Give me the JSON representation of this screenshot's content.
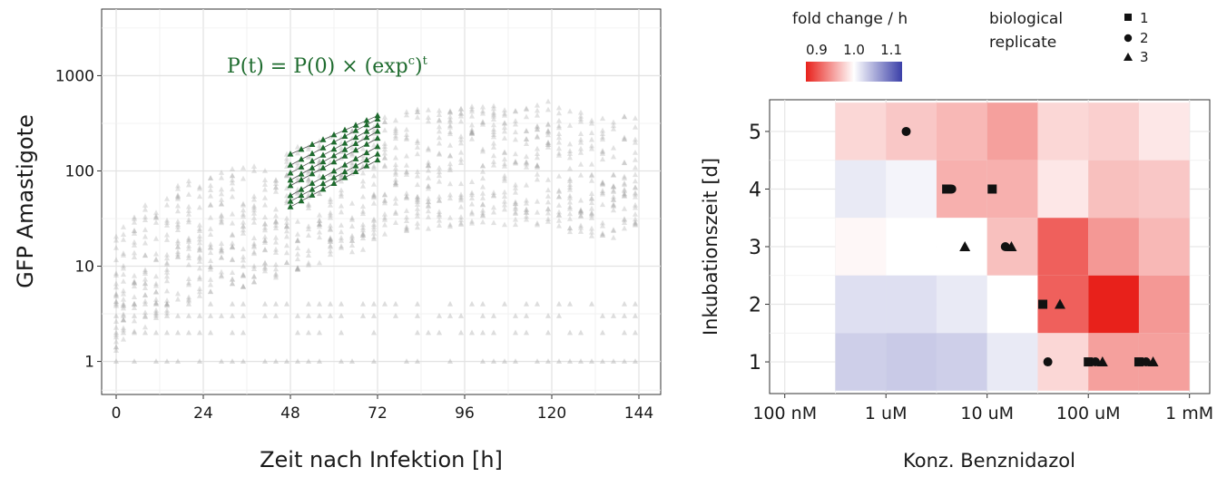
{
  "chart_data": [
    {
      "type": "scatter",
      "xlabel": "Zeit nach Infektion [h]",
      "ylabel": "GFP Amastigote",
      "annotation": "P(t) = P(0) × (exp",
      "annotation_sup": "c",
      "annotation_tail": ")",
      "annotation_sup2": "t",
      "x_ticks": [
        "0",
        "24",
        "48",
        "72",
        "96",
        "120",
        "144"
      ],
      "x_tick_values": [
        0,
        24,
        48,
        72,
        96,
        120,
        144
      ],
      "y_ticks": [
        "1",
        "10",
        "100",
        "1000"
      ],
      "y_tick_values": [
        1,
        10,
        100,
        1000
      ],
      "xlim": [
        -4,
        150
      ],
      "ylim": [
        0.45,
        5000
      ],
      "y_scale": "log",
      "grid": true,
      "point_color": "#9e9e9e",
      "highlight_color": "#1e6b2e",
      "background_timepoints_h": [
        0,
        2,
        5,
        8,
        11,
        14,
        17,
        20,
        23,
        26,
        29,
        32,
        35,
        38,
        41,
        44,
        47,
        50,
        53,
        56,
        59,
        62,
        65,
        68,
        71,
        74,
        77,
        80,
        83,
        86,
        89,
        92,
        95,
        98,
        101,
        104,
        107,
        110,
        113,
        116,
        119,
        122,
        125,
        128,
        131,
        134,
        137,
        140,
        143
      ],
      "background_median": [
        5,
        6,
        8,
        10,
        12,
        14,
        16,
        18,
        20,
        22,
        24,
        25,
        27,
        29,
        31,
        34,
        37,
        40,
        44,
        48,
        52,
        57,
        62,
        66,
        70,
        90,
        95,
        100,
        105,
        108,
        110,
        115,
        118,
        120,
        125,
        120,
        118,
        115,
        118,
        120,
        125,
        110,
        100,
        95,
        92,
        90,
        88,
        86,
        85
      ],
      "background_max": [
        25,
        30,
        40,
        55,
        70,
        90,
        120,
        150,
        180,
        190,
        200,
        210,
        220,
        230,
        240,
        260,
        280,
        300,
        320,
        330,
        340,
        350,
        360,
        380,
        400,
        420,
        430,
        440,
        450,
        460,
        470,
        480,
        490,
        500,
        500,
        490,
        480,
        470,
        480,
        500,
        560,
        480,
        440,
        420,
        410,
        400,
        420,
        410,
        430
      ],
      "fit_lines": [
        {
          "t": [
            48,
            72
          ],
          "y": [
            70,
            220
          ]
        },
        {
          "t": [
            48,
            72
          ],
          "y": [
            80,
            260
          ]
        },
        {
          "t": [
            48,
            72
          ],
          "y": [
            95,
            300
          ]
        },
        {
          "t": [
            48,
            72
          ],
          "y": [
            115,
            350
          ]
        },
        {
          "t": [
            48,
            72
          ],
          "y": [
            150,
            380
          ]
        },
        {
          "t": [
            48,
            72
          ],
          "y": [
            55,
            180
          ]
        },
        {
          "t": [
            48,
            72
          ],
          "y": [
            48,
            150
          ]
        },
        {
          "t": [
            48,
            72
          ],
          "y": [
            42,
            130
          ]
        }
      ],
      "fit_timepoints_h": [
        48,
        51,
        54,
        57,
        60,
        63,
        66,
        69,
        72
      ]
    },
    {
      "type": "heatmap",
      "xlabel": "Konz. Benznidazol",
      "ylabel": "Inkubationszeit [d]",
      "x_ticks": [
        "100 nM",
        "1 uM",
        "10 uM",
        "100 uM",
        "1 mM"
      ],
      "y_ticks": [
        "1",
        "2",
        "3",
        "4",
        "5"
      ],
      "x_scale": "log",
      "xlim_log10_uM": [
        -1.15,
        3.2
      ],
      "ylim": [
        0.45,
        5.55
      ],
      "grid": true,
      "legend": {
        "title": "fold change / h",
        "ticks": [
          "0.9",
          "1.0",
          "1.1"
        ],
        "tick_values": [
          0.9,
          1.0,
          1.1
        ],
        "low_color": "#e8211b",
        "mid_color": "#ffffff",
        "high_color": "#3a3fa8"
      },
      "shape_legend": {
        "title_line1": "biological",
        "title_line2": "replicate",
        "entries": [
          {
            "shape": "square",
            "label": "1"
          },
          {
            "shape": "circle",
            "label": "2"
          },
          {
            "shape": "triangle",
            "label": "3"
          }
        ]
      },
      "columns_log10_uM": [
        -0.25,
        0.25,
        0.75,
        1.25,
        1.75,
        2.25,
        2.75
      ],
      "cells": [
        {
          "day": 5,
          "fold": [
            0.975,
            0.965,
            0.955,
            0.94,
            0.975,
            0.97,
            0.985
          ]
        },
        {
          "day": 4,
          "fold": [
            1.02,
            1.01,
            0.95,
            0.95,
            0.985,
            0.96,
            0.965
          ]
        },
        {
          "day": 3,
          "fold": [
            0.995,
            1.0,
            1.0,
            0.96,
            0.9,
            0.935,
            0.955
          ]
        },
        {
          "day": 2,
          "fold": [
            1.03,
            1.03,
            1.02,
            1.0,
            0.9,
            0.86,
            0.935
          ]
        },
        {
          "day": 1,
          "fold": [
            1.045,
            1.05,
            1.045,
            1.02,
            0.975,
            0.94,
            0.94
          ]
        }
      ],
      "points": [
        {
          "day": 5,
          "log10_uM": 0.2,
          "shape": "circle"
        },
        {
          "day": 4,
          "log10_uM": 0.6,
          "shape": "square"
        },
        {
          "day": 4,
          "log10_uM": 0.65,
          "shape": "circle"
        },
        {
          "day": 4,
          "log10_uM": 1.05,
          "shape": "square"
        },
        {
          "day": 3,
          "log10_uM": 0.78,
          "shape": "triangle"
        },
        {
          "day": 3,
          "log10_uM": 1.18,
          "shape": "circle"
        },
        {
          "day": 3,
          "log10_uM": 1.24,
          "shape": "triangle"
        },
        {
          "day": 2,
          "log10_uM": 1.55,
          "shape": "square"
        },
        {
          "day": 2,
          "log10_uM": 1.72,
          "shape": "triangle"
        },
        {
          "day": 1,
          "log10_uM": 1.6,
          "shape": "circle"
        },
        {
          "day": 1,
          "log10_uM": 2.0,
          "shape": "square"
        },
        {
          "day": 1,
          "log10_uM": 2.07,
          "shape": "circle"
        },
        {
          "day": 1,
          "log10_uM": 2.14,
          "shape": "triangle"
        },
        {
          "day": 1,
          "log10_uM": 2.5,
          "shape": "square"
        },
        {
          "day": 1,
          "log10_uM": 2.57,
          "shape": "circle"
        },
        {
          "day": 1,
          "log10_uM": 2.64,
          "shape": "triangle"
        }
      ]
    }
  ]
}
